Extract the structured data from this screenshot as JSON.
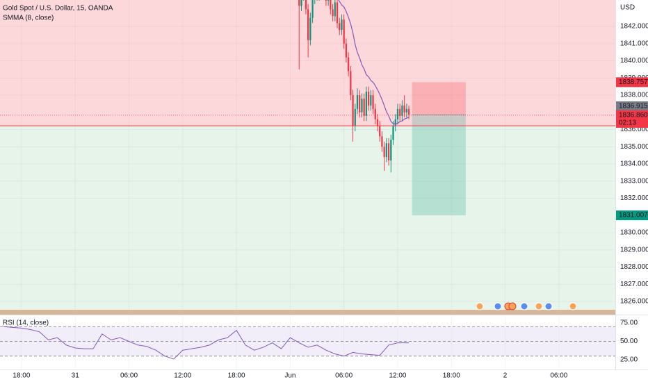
{
  "chart_data": [
    {
      "type": "candlestick",
      "title": "Gold Spot / U.S. Dollar, 15, OANDA",
      "unit_label": "USD",
      "x": [
        1,
        1.25,
        1.5,
        1.75,
        2,
        2.25,
        2.5,
        2.75,
        3,
        3.25,
        3.5,
        3.75,
        4,
        4.25,
        4.5,
        4.75,
        5,
        5.25,
        5.5,
        5.75,
        6,
        6.25,
        6.5,
        6.75,
        7,
        7.25,
        7.5,
        7.75,
        8,
        8.25,
        8.5,
        8.75,
        9,
        9.25,
        9.5,
        9.75,
        10,
        10.25,
        10.5,
        10.75,
        11,
        11.25,
        11.5,
        11.75,
        12,
        12.25,
        12.5,
        12.75,
        13,
        13.25
      ],
      "open": [
        1843.8,
        1843.2,
        1843.8,
        1844.5,
        1843.0,
        1841.2,
        1842.5,
        1843.6,
        1844.2,
        1843.8,
        1844.6,
        1845.0,
        1844.0,
        1843.5,
        1844.2,
        1843.0,
        1842.6,
        1843.4,
        1842.2,
        1841.8,
        1842.4,
        1841.0,
        1840.2,
        1839.4,
        1838.0,
        1836.2,
        1837.2,
        1838.0,
        1837.0,
        1837.8,
        1836.8,
        1838.2,
        1837.4,
        1838.0,
        1837.2,
        1836.6,
        1836.2,
        1835.6,
        1835.0,
        1834.4,
        1835.2,
        1834.2,
        1835.4,
        1836.2,
        1836.6,
        1837.2,
        1836.8,
        1837.4,
        1837.0,
        1837.2
      ],
      "high": [
        1844.1,
        1844.1,
        1844.8,
        1844.8,
        1843.3,
        1842.8,
        1843.9,
        1844.5,
        1844.5,
        1844.9,
        1845.3,
        1845.3,
        1844.3,
        1844.5,
        1844.5,
        1843.3,
        1843.7,
        1843.7,
        1842.5,
        1842.7,
        1842.7,
        1841.3,
        1840.5,
        1839.7,
        1838.3,
        1837.5,
        1838.4,
        1838.3,
        1838.1,
        1838.1,
        1838.5,
        1838.5,
        1838.3,
        1838.3,
        1837.5,
        1836.9,
        1836.5,
        1835.9,
        1835.3,
        1835.5,
        1835.5,
        1835.7,
        1836.5,
        1836.9,
        1837.5,
        1837.5,
        1837.7,
        1838.0,
        1837.5,
        1837.4
      ],
      "low": [
        1839.5,
        1842.9,
        1843.5,
        1842.7,
        1840.2,
        1840.9,
        1842.2,
        1843.3,
        1843.5,
        1843.5,
        1844.3,
        1843.7,
        1843.2,
        1843.2,
        1842.7,
        1842.3,
        1842.3,
        1841.9,
        1841.5,
        1841.5,
        1840.7,
        1839.9,
        1839.1,
        1837.7,
        1835.3,
        1835.9,
        1836.9,
        1836.7,
        1836.7,
        1836.5,
        1836.5,
        1837.1,
        1837.1,
        1836.9,
        1836.3,
        1835.9,
        1835.3,
        1834.7,
        1833.6,
        1834.1,
        1833.9,
        1833.5,
        1835.1,
        1835.9,
        1836.3,
        1836.5,
        1836.5,
        1836.7,
        1836.7,
        1836.6
      ],
      "close": [
        1843.2,
        1843.8,
        1844.5,
        1843.0,
        1841.2,
        1842.5,
        1843.6,
        1844.2,
        1843.8,
        1844.6,
        1845.0,
        1844.0,
        1843.5,
        1844.2,
        1843.0,
        1842.6,
        1843.4,
        1842.2,
        1841.8,
        1842.4,
        1841.0,
        1840.2,
        1839.4,
        1838.0,
        1836.2,
        1837.2,
        1838.0,
        1837.0,
        1837.8,
        1836.8,
        1838.2,
        1837.4,
        1838.0,
        1837.2,
        1836.6,
        1836.2,
        1835.6,
        1835.0,
        1834.4,
        1835.2,
        1834.2,
        1835.4,
        1836.2,
        1836.6,
        1837.2,
        1836.8,
        1837.4,
        1837.0,
        1837.2,
        1836.86
      ],
      "up_color": "#089981",
      "down_color": "#f23645",
      "indicator": {
        "name": "SMMA (8, close)",
        "color": "#7e57c2",
        "values": [
          1844.5,
          1844.34,
          1844.27,
          1844.3,
          1844.14,
          1843.77,
          1843.61,
          1843.61,
          1843.68,
          1843.7,
          1843.81,
          1843.96,
          1843.97,
          1843.91,
          1843.95,
          1843.83,
          1843.68,
          1843.64,
          1843.46,
          1843.25,
          1843.14,
          1842.87,
          1842.54,
          1842.15,
          1841.63,
          1840.95,
          1840.48,
          1840.17,
          1839.77,
          1839.53,
          1839.19,
          1839.07,
          1838.86,
          1838.75,
          1838.56,
          1838.32,
          1838.05,
          1837.74,
          1837.4,
          1837.03,
          1836.8,
          1836.47,
          1836.34,
          1836.32,
          1836.36,
          1836.46,
          1836.5,
          1836.61,
          1836.66,
          1836.73
        ]
      },
      "level": 1836.22,
      "last_price": 1836.915,
      "countdown": "02:13",
      "position": {
        "x": [
          13.6,
          19.6
        ],
        "stop": 1838.757,
        "entry": 1836.86,
        "entry_label": "1836.860",
        "target": 1831.007
      },
      "xlim": [
        -32.4,
        36.3
      ],
      "xticks": [
        {
          "value": -30,
          "label": "18:00"
        },
        {
          "value": -24,
          "label": "31"
        },
        {
          "value": -18,
          "label": "06:00"
        },
        {
          "value": -12,
          "label": "12:00"
        },
        {
          "value": -6,
          "label": "18:00"
        },
        {
          "value": 0,
          "label": "Jun"
        },
        {
          "value": 6,
          "label": "06:00"
        },
        {
          "value": 12,
          "label": "12:00"
        },
        {
          "value": 18,
          "label": "18:00"
        },
        {
          "value": 24,
          "label": "2"
        },
        {
          "value": 30,
          "label": "06:00"
        }
      ],
      "ylim": [
        1825.27,
        1843.54
      ],
      "yticks": [
        {
          "value": 1842,
          "label": "1842.000"
        },
        {
          "value": 1841,
          "label": "1841.000"
        },
        {
          "value": 1840,
          "label": "1840.000"
        },
        {
          "value": 1839,
          "label": "1839.000"
        },
        {
          "value": 1838,
          "label": "1838.000"
        },
        {
          "value": 1836,
          "label": "1836.000"
        },
        {
          "value": 1835,
          "label": "1835.000"
        },
        {
          "value": 1834,
          "label": "1834.000"
        },
        {
          "value": 1833,
          "label": "1833.000"
        },
        {
          "value": 1832,
          "label": "1832.000"
        },
        {
          "value": 1830,
          "label": "1830.000"
        },
        {
          "value": 1829,
          "label": "1829.000"
        },
        {
          "value": 1828,
          "label": "1828.000"
        },
        {
          "value": 1827,
          "label": "1827.000"
        },
        {
          "value": 1826,
          "label": "1826.000"
        }
      ],
      "grid": true
    },
    {
      "type": "line",
      "title": "RSI (14, close)",
      "color": "#7e57c2",
      "x": [
        -32,
        -31,
        -30,
        -29,
        -28,
        -27,
        -26,
        -25,
        -24,
        -23,
        -22,
        -21,
        -20,
        -19,
        -18,
        -17,
        -16,
        -15,
        -14,
        -13,
        -12,
        -11,
        -10,
        -9,
        -8,
        -7,
        -6,
        -5,
        -4,
        -3,
        -2,
        -1,
        0,
        1,
        2,
        3,
        4,
        5,
        6,
        7,
        8,
        9,
        10,
        11,
        12,
        13.25
      ],
      "values": [
        70,
        69,
        68,
        66,
        63,
        52,
        55,
        45,
        41,
        40,
        40,
        60,
        52,
        55,
        50,
        45,
        43,
        38,
        30,
        26,
        38,
        40,
        42,
        45,
        52,
        55,
        65,
        45,
        38,
        42,
        48,
        40,
        55,
        48,
        42,
        45,
        38,
        33,
        30,
        35,
        33,
        32,
        31,
        45,
        48,
        48
      ],
      "band": [
        30,
        70
      ],
      "midline": 50,
      "ylim": [
        11.8,
        84.4
      ],
      "yticks": [
        {
          "value": 75,
          "label": "75.00"
        },
        {
          "value": 50,
          "label": "50.00"
        },
        {
          "value": 25,
          "label": "25.00"
        }
      ]
    }
  ]
}
